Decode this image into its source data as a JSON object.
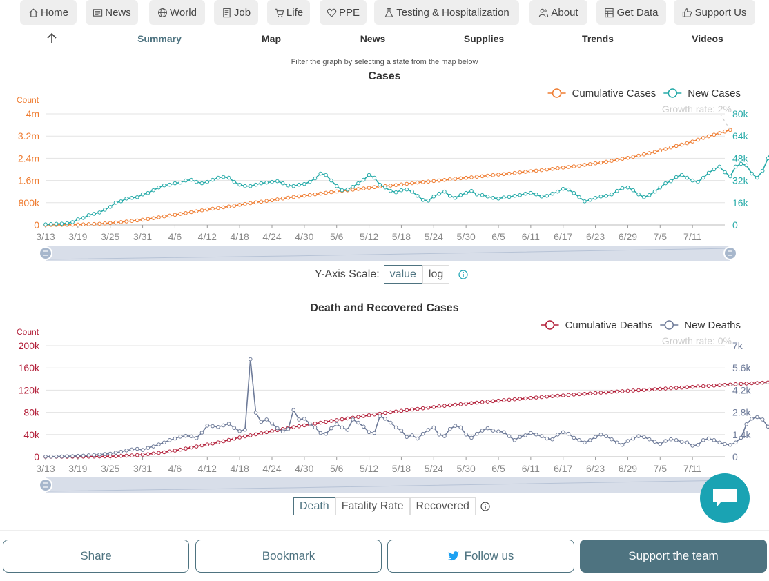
{
  "nav": {
    "items": [
      {
        "label": "Home",
        "icon": "home-icon"
      },
      {
        "label": "News",
        "icon": "newspaper-icon"
      },
      {
        "label": "World",
        "icon": "globe-icon"
      },
      {
        "label": "Job",
        "icon": "document-icon"
      },
      {
        "label": "Life",
        "icon": "cart-icon"
      },
      {
        "label": "PPE",
        "icon": "heart-icon"
      },
      {
        "label": "Testing & Hospitalization",
        "icon": "flask-icon"
      },
      {
        "label": "About",
        "icon": "people-icon"
      },
      {
        "label": "Get Data",
        "icon": "spreadsheet-icon"
      },
      {
        "label": "Support Us",
        "icon": "thumbs-up-icon"
      }
    ]
  },
  "subnav": {
    "items": [
      "Summary",
      "Map",
      "News",
      "Supplies",
      "Trends",
      "Videos"
    ],
    "active": "Summary"
  },
  "filter_note": "Filter the graph by selecting a state from the map below",
  "colors": {
    "accent": "#4e7380",
    "cumulative_cases": "#ef7d32",
    "new_cases": "#25aaa8",
    "cumulative_deaths": "#b3203a",
    "new_deaths": "#6e7b99",
    "chat": "#1aa3b3"
  },
  "cases_controls": {
    "label": "Y-Axis Scale:",
    "options": [
      "value",
      "log"
    ],
    "selected": "value"
  },
  "deaths_controls": {
    "options": [
      "Death",
      "Fatality Rate",
      "Recovered"
    ],
    "selected": "Death"
  },
  "chart_data": [
    {
      "type": "line",
      "title": "Cases",
      "y_left_label": "Count",
      "y_left_ticks": [
        "0",
        "800k",
        "1.6m",
        "2.4m",
        "3.2m",
        "4m"
      ],
      "y_right_ticks": [
        "0",
        "16k",
        "32k",
        "48k",
        "64k",
        "80k"
      ],
      "x_ticks": [
        "3/13",
        "3/19",
        "3/25",
        "3/31",
        "4/6",
        "4/12",
        "4/18",
        "4/24",
        "4/30",
        "5/6",
        "5/12",
        "5/18",
        "5/24",
        "5/30",
        "6/5",
        "6/11",
        "6/17",
        "6/23",
        "6/29",
        "7/5",
        "7/11"
      ],
      "x_start": "3/13",
      "x_end": "7/13",
      "annotation": "Growth rate: 2%",
      "legend_position": "top-right",
      "ylim_left": [
        0,
        4000000
      ],
      "ylim_right": [
        0,
        80000
      ],
      "series": [
        {
          "name": "Cumulative Cases",
          "axis": "left",
          "values": [
            2000,
            3000,
            4000,
            5000,
            7000,
            10000,
            15000,
            19000,
            26000,
            34000,
            43000,
            54000,
            69000,
            86000,
            104000,
            124000,
            144000,
            164000,
            189000,
            216000,
            245000,
            276000,
            308000,
            337000,
            366000,
            396000,
            428000,
            460000,
            493000,
            526000,
            557000,
            585000,
            610000,
            636000,
            664000,
            693000,
            724000,
            754000,
            783000,
            811000,
            837000,
            862000,
            890000,
            921000,
            951000,
            980000,
            1007000,
            1030000,
            1052000,
            1076000,
            1102000,
            1128000,
            1156000,
            1181000,
            1206000,
            1228000,
            1248000,
            1270000,
            1293000,
            1316000,
            1338000,
            1361000,
            1381000,
            1399000,
            1417000,
            1436000,
            1458000,
            1481000,
            1504000,
            1526000,
            1544000,
            1561000,
            1580000,
            1600000,
            1620000,
            1642000,
            1663000,
            1681000,
            1698000,
            1716000,
            1735000,
            1755000,
            1775000,
            1795000,
            1813000,
            1831000,
            1850000,
            1871000,
            1893000,
            1914000,
            1934000,
            1954000,
            1974000,
            1996000,
            2018000,
            2042000,
            2065000,
            2087000,
            2110000,
            2135000,
            2163000,
            2191000,
            2218000,
            2244000,
            2275000,
            2308000,
            2344000,
            2381000,
            2416000,
            2456000,
            2497000,
            2541000,
            2585000,
            2627000,
            2678000,
            2733000,
            2792000,
            2847000,
            2894000,
            2943000,
            3003000,
            3069000,
            3133000,
            3191000,
            3249000,
            3307000,
            3361000,
            3420000
          ]
        },
        {
          "name": "New Cases",
          "axis": "right",
          "values": [
            400,
            600,
            800,
            900,
            1200,
            2000,
            4000,
            5000,
            7000,
            8000,
            9000,
            11000,
            13000,
            16000,
            17000,
            19000,
            19500,
            20000,
            22000,
            23000,
            25000,
            27000,
            28500,
            29000,
            30000,
            30500,
            32000,
            32500,
            31000,
            30000,
            31000,
            32500,
            34000,
            34500,
            34000,
            31000,
            29000,
            28000,
            28000,
            29000,
            30000,
            30500,
            31000,
            31500,
            30000,
            28500,
            28000,
            29000,
            29500,
            31000,
            33500,
            37000,
            36000,
            32000,
            28000,
            25000,
            25500,
            27500,
            30000,
            32500,
            36000,
            34000,
            29000,
            27000,
            24500,
            23500,
            25000,
            25500,
            24000,
            21000,
            18000,
            17500,
            20500,
            22500,
            24000,
            21000,
            19500,
            21500,
            23000,
            24500,
            22000,
            21500,
            20500,
            19500,
            19000,
            19800,
            20200,
            21000,
            21500,
            22500,
            23000,
            22000,
            20500,
            21000,
            22500,
            24000,
            26000,
            25500,
            23000,
            20000,
            17000,
            18000,
            19500,
            20500,
            21000,
            22000,
            24500,
            26500,
            27000,
            25000,
            22000,
            20000,
            21500,
            24000,
            27000,
            30000,
            31500,
            34500,
            36000,
            34000,
            32000,
            31000,
            34000,
            37500,
            40000,
            42000,
            38000,
            35000,
            42000,
            44000,
            43000,
            37000,
            34000,
            39000,
            48000,
            57000,
            59000,
            57500,
            61000,
            64000,
            70000,
            68000,
            66000,
            58000,
            41000
          ]
        }
      ]
    },
    {
      "type": "line",
      "title": "Death and Recovered Cases",
      "y_left_label": "Count",
      "y_left_ticks": [
        "0",
        "40k",
        "80k",
        "120k",
        "160k",
        "200k"
      ],
      "y_right_ticks": [
        "0",
        "1.4k",
        "2.8k",
        "4.2k",
        "5.6k",
        "7k"
      ],
      "x_ticks": [
        "3/13",
        "3/19",
        "3/25",
        "3/31",
        "4/6",
        "4/12",
        "4/18",
        "4/24",
        "4/30",
        "5/6",
        "5/12",
        "5/18",
        "5/24",
        "5/30",
        "6/5",
        "6/11",
        "6/17",
        "6/23",
        "6/29",
        "7/5",
        "7/11"
      ],
      "x_start": "3/13",
      "x_end": "7/13",
      "annotation": "Growth rate: 0%",
      "legend_position": "top-right",
      "ylim_left": [
        0,
        200000
      ],
      "ylim_right": [
        0,
        7000
      ],
      "series": [
        {
          "name": "Cumulative Deaths",
          "axis": "left",
          "values": [
            50,
            60,
            80,
            100,
            130,
            170,
            220,
            280,
            350,
            440,
            550,
            700,
            900,
            1200,
            1500,
            1900,
            2400,
            3000,
            3800,
            4800,
            5800,
            6900,
            8200,
            9600,
            11100,
            12900,
            14800,
            16700,
            18600,
            20400,
            22100,
            23900,
            25900,
            28000,
            30300,
            32700,
            34800,
            36700,
            38600,
            40500,
            42400,
            44300,
            46100,
            48000,
            49900,
            51700,
            53400,
            55000,
            56600,
            58200,
            59800,
            61400,
            63000,
            64500,
            66000,
            67500,
            69000,
            70400,
            71800,
            73300,
            74800,
            76200,
            77600,
            79000,
            80300,
            81600,
            82800,
            84000,
            85200,
            86300,
            87400,
            88500,
            89600,
            90700,
            91700,
            92700,
            93700,
            94700,
            95700,
            96600,
            97500,
            98400,
            99300,
            100200,
            101100,
            101900,
            102700,
            103500,
            104300,
            105100,
            105900,
            106700,
            107500,
            108300,
            109100,
            109800,
            110500,
            111200,
            111900,
            112600,
            113300,
            114000,
            114700,
            115400,
            116100,
            116800,
            117500,
            118100,
            118700,
            119300,
            119900,
            120500,
            121100,
            121700,
            122300,
            122900,
            123500,
            124100,
            124700,
            125300,
            125900,
            126500,
            127100,
            127700,
            128300,
            128900,
            129500,
            130100,
            130700,
            131300,
            131800,
            132300,
            132800,
            133300,
            133800,
            134300,
            134800,
            135300,
            135800,
            136200,
            136600,
            137000,
            137400,
            137800
          ]
        },
        {
          "name": "New Deaths",
          "axis": "right",
          "values": [
            10,
            12,
            15,
            20,
            30,
            40,
            55,
            70,
            90,
            110,
            140,
            170,
            200,
            260,
            320,
            400,
            460,
            500,
            430,
            560,
            650,
            780,
            900,
            1050,
            1150,
            1270,
            1320,
            1290,
            1180,
            1520,
            1960,
            1930,
            1880,
            1980,
            2080,
            1820,
            1620,
            1710,
            6150,
            2780,
            2200,
            2350,
            2100,
            1800,
            1600,
            1750,
            2950,
            2350,
            2400,
            2100,
            1850,
            1500,
            1450,
            1800,
            2050,
            1850,
            1700,
            2350,
            2150,
            1900,
            1550,
            1500,
            2550,
            2400,
            2150,
            1850,
            1650,
            1250,
            1350,
            1150,
            1450,
            1700,
            1850,
            1400,
            1300,
            1750,
            1950,
            1850,
            1400,
            1200,
            1450,
            1650,
            1800,
            1650,
            1600,
            1550,
            1300,
            1050,
            1250,
            1350,
            1500,
            1400,
            1300,
            1150,
            1100,
            1400,
            1550,
            1450,
            1200,
            1050,
            900,
            1050,
            1250,
            1400,
            1300,
            1100,
            900,
            750,
            1000,
            1150,
            1300,
            1250,
            1100,
            950,
            800,
            1000,
            1100,
            1050,
            950,
            900,
            700,
            750,
            1050,
            1150,
            1050,
            900,
            800,
            750,
            900,
            1200,
            2050,
            2400,
            2500,
            2350,
            1900,
            1500,
            1250,
            950,
            1150,
            1100
          ]
        }
      ]
    }
  ],
  "bottom": {
    "share": "Share",
    "bookmark": "Bookmark",
    "follow": "Follow us",
    "support": "Support the team"
  }
}
